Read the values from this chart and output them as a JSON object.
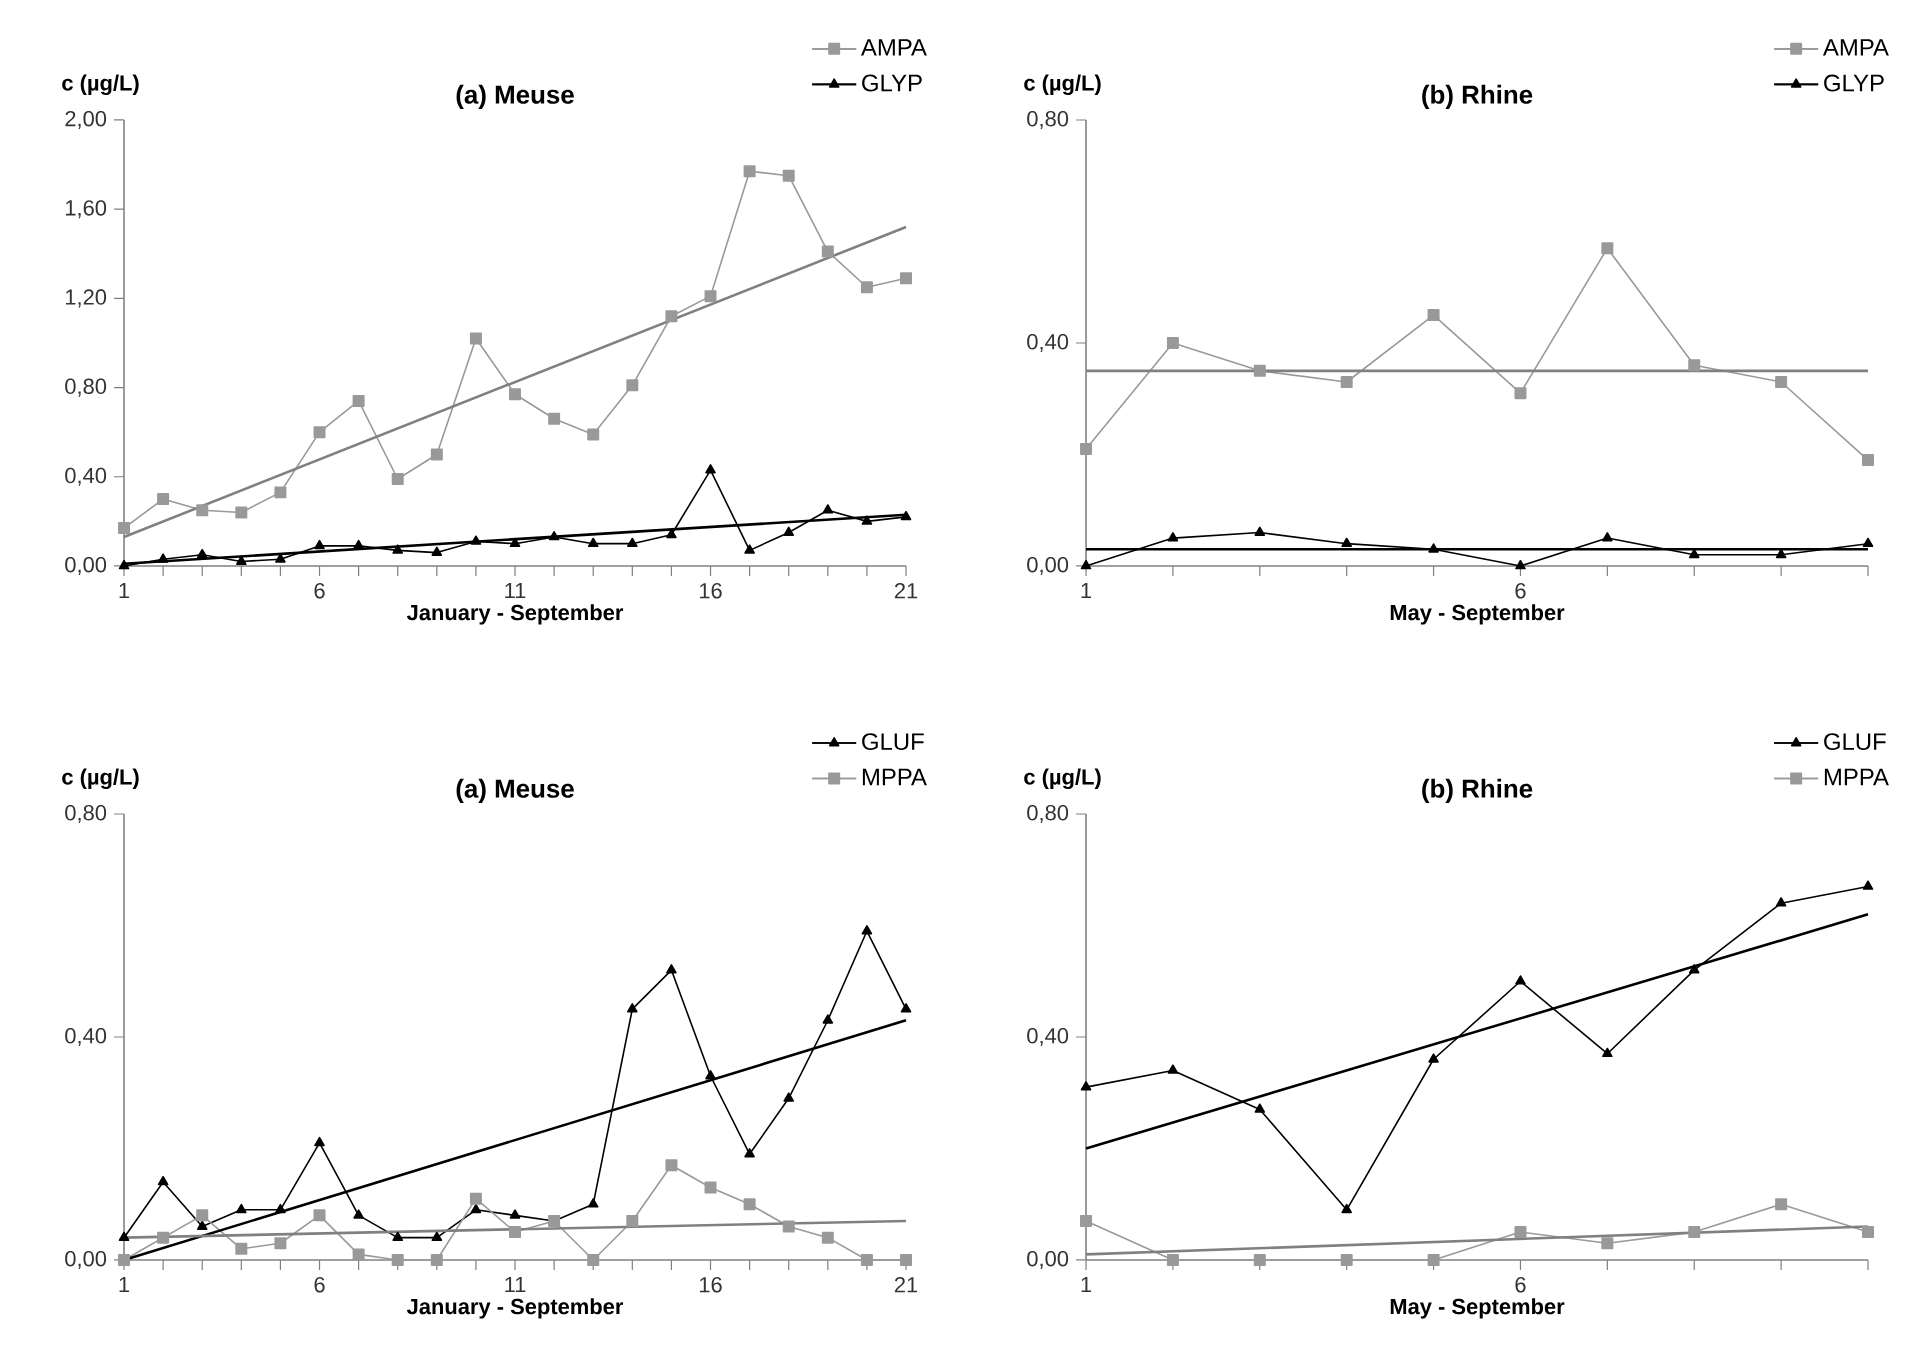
{
  "chart_data": [
    {
      "type": "line",
      "title": "(a) Meuse",
      "xlabel": "January - September",
      "ylabel": "c (µg/L)",
      "x": [
        1,
        2,
        3,
        4,
        5,
        6,
        7,
        8,
        9,
        10,
        11,
        12,
        13,
        14,
        15,
        16,
        17,
        18,
        19,
        20,
        21
      ],
      "xlim": [
        1,
        21
      ],
      "xticks": [
        1,
        {
          "value": 2,
          "label": null
        },
        {
          "value": 3,
          "label": null
        },
        {
          "value": 4,
          "label": null
        },
        {
          "value": 5,
          "label": null
        },
        6,
        {
          "value": 7,
          "label": null
        },
        {
          "value": 8,
          "label": null
        },
        {
          "value": 9,
          "label": null
        },
        {
          "value": 10,
          "label": null
        },
        11,
        {
          "value": 12,
          "label": null
        },
        {
          "value": 13,
          "label": null
        },
        {
          "value": 14,
          "label": null
        },
        {
          "value": 15,
          "label": null
        },
        16,
        {
          "value": 17,
          "label": null
        },
        {
          "value": 18,
          "label": null
        },
        {
          "value": 19,
          "label": null
        },
        {
          "value": 20,
          "label": null
        },
        21
      ],
      "ylim": [
        0,
        2
      ],
      "yticks": [
        {
          "value": 0,
          "label": "0,00"
        },
        {
          "value": 0.4,
          "label": "0,40"
        },
        {
          "value": 0.8,
          "label": "0,80"
        },
        {
          "value": 1.2,
          "label": "1,20"
        },
        {
          "value": 1.6,
          "label": "1,60"
        },
        {
          "value": 2,
          "label": "2,00"
        }
      ],
      "legend": "top right",
      "grid": false,
      "series": [
        {
          "name": "AMPA",
          "color": "#999999",
          "marker": "square",
          "values": [
            0.17,
            0.3,
            0.25,
            0.24,
            0.33,
            0.6,
            0.74,
            0.39,
            0.5,
            1.02,
            0.77,
            0.66,
            0.59,
            0.81,
            1.12,
            1.21,
            1.77,
            1.75,
            1.41,
            1.25,
            1.29
          ]
        },
        {
          "name": "GLYP",
          "color": "#000000",
          "marker": "triangle",
          "values": [
            0.0,
            0.03,
            0.05,
            0.02,
            0.03,
            0.09,
            0.09,
            0.07,
            0.06,
            0.11,
            0.1,
            0.13,
            0.1,
            0.1,
            0.14,
            0.43,
            0.07,
            0.15,
            0.25,
            0.2,
            0.22
          ]
        },
        {
          "color": "#808080",
          "marker": "none",
          "x": [
            1,
            21
          ],
          "values": [
            0.13,
            1.52
          ]
        },
        {
          "color": "#000000",
          "marker": "none",
          "x": [
            1,
            21
          ],
          "values": [
            0.01,
            0.23
          ]
        }
      ]
    },
    {
      "type": "line",
      "title": "(b) Rhine",
      "xlabel": "May - September",
      "ylabel": "c (µg/L)",
      "x": [
        1,
        2,
        3,
        4,
        5,
        6,
        7,
        8,
        9,
        10
      ],
      "xlim": [
        1,
        10
      ],
      "xticks": [
        1,
        {
          "value": 2,
          "label": null
        },
        {
          "value": 3,
          "label": null
        },
        {
          "value": 4,
          "label": null
        },
        {
          "value": 5,
          "label": null
        },
        6,
        {
          "value": 7,
          "label": null
        },
        {
          "value": 8,
          "label": null
        },
        {
          "value": 9,
          "label": null
        },
        {
          "value": 10,
          "label": null
        }
      ],
      "ylim": [
        0,
        0.8
      ],
      "yticks": [
        {
          "value": 0,
          "label": "0,00"
        },
        {
          "value": 0.4,
          "label": "0,40"
        },
        {
          "value": 0.8,
          "label": "0,80"
        }
      ],
      "legend": "top right",
      "grid": false,
      "series": [
        {
          "name": "AMPA",
          "color": "#999999",
          "marker": "square",
          "values": [
            0.21,
            0.4,
            0.35,
            0.33,
            0.45,
            0.31,
            0.57,
            0.36,
            0.33,
            0.19
          ]
        },
        {
          "name": "GLYP",
          "color": "#000000",
          "marker": "triangle",
          "values": [
            0.0,
            0.05,
            0.06,
            0.04,
            0.03,
            0.0,
            0.05,
            0.02,
            0.02,
            0.04
          ]
        },
        {
          "color": "#808080",
          "marker": "none",
          "x": [
            1,
            10
          ],
          "values": [
            0.35,
            0.35
          ]
        },
        {
          "color": "#000000",
          "marker": "none",
          "x": [
            1,
            10
          ],
          "values": [
            0.03,
            0.03
          ]
        }
      ]
    },
    {
      "type": "line",
      "title": "(a) Meuse",
      "xlabel": "January - September",
      "ylabel": "c (µg/L)",
      "x": [
        1,
        2,
        3,
        4,
        5,
        6,
        7,
        8,
        9,
        10,
        11,
        12,
        13,
        14,
        15,
        16,
        17,
        18,
        19,
        20,
        21
      ],
      "xlim": [
        1,
        21
      ],
      "xticks": [
        1,
        {
          "value": 2,
          "label": null
        },
        {
          "value": 3,
          "label": null
        },
        {
          "value": 4,
          "label": null
        },
        {
          "value": 5,
          "label": null
        },
        6,
        {
          "value": 7,
          "label": null
        },
        {
          "value": 8,
          "label": null
        },
        {
          "value": 9,
          "label": null
        },
        {
          "value": 10,
          "label": null
        },
        11,
        {
          "value": 12,
          "label": null
        },
        {
          "value": 13,
          "label": null
        },
        {
          "value": 14,
          "label": null
        },
        {
          "value": 15,
          "label": null
        },
        16,
        {
          "value": 17,
          "label": null
        },
        {
          "value": 18,
          "label": null
        },
        {
          "value": 19,
          "label": null
        },
        {
          "value": 20,
          "label": null
        },
        21
      ],
      "ylim": [
        0,
        0.8
      ],
      "yticks": [
        {
          "value": 0,
          "label": "0,00"
        },
        {
          "value": 0.4,
          "label": "0,40"
        },
        {
          "value": 0.8,
          "label": "0,80"
        }
      ],
      "legend": "top right",
      "grid": false,
      "series": [
        {
          "name": "GLUF",
          "color": "#000000",
          "marker": "triangle",
          "values": [
            0.04,
            0.14,
            0.06,
            0.09,
            0.09,
            0.21,
            0.08,
            0.04,
            0.04,
            0.09,
            0.08,
            0.07,
            0.1,
            0.45,
            0.52,
            0.33,
            0.19,
            0.29,
            0.43,
            0.59,
            0.45
          ]
        },
        {
          "name": "MPPA",
          "color": "#999999",
          "marker": "square",
          "values": [
            0.0,
            0.04,
            0.08,
            0.02,
            0.03,
            0.08,
            0.01,
            0.0,
            0.0,
            0.11,
            0.05,
            0.07,
            0.0,
            0.07,
            0.17,
            0.13,
            0.1,
            0.06,
            0.04,
            0.0,
            0.0
          ]
        },
        {
          "color": "#000000",
          "marker": "none",
          "x": [
            1,
            21
          ],
          "values": [
            0.0,
            0.43
          ]
        },
        {
          "color": "#808080",
          "marker": "none",
          "x": [
            1,
            21
          ],
          "values": [
            0.04,
            0.07
          ]
        }
      ]
    },
    {
      "type": "line",
      "title": "(b) Rhine",
      "xlabel": "May - September",
      "ylabel": "c (µg/L)",
      "x": [
        1,
        2,
        3,
        4,
        5,
        6,
        7,
        8,
        9,
        10
      ],
      "xlim": [
        1,
        10
      ],
      "xticks": [
        1,
        {
          "value": 2,
          "label": null
        },
        {
          "value": 3,
          "label": null
        },
        {
          "value": 4,
          "label": null
        },
        {
          "value": 5,
          "label": null
        },
        6,
        {
          "value": 7,
          "label": null
        },
        {
          "value": 8,
          "label": null
        },
        {
          "value": 9,
          "label": null
        },
        {
          "value": 10,
          "label": null
        }
      ],
      "ylim": [
        0,
        0.8
      ],
      "yticks": [
        {
          "value": 0,
          "label": "0,00"
        },
        {
          "value": 0.4,
          "label": "0,40"
        },
        {
          "value": 0.8,
          "label": "0,80"
        }
      ],
      "legend": "top right",
      "grid": false,
      "series": [
        {
          "name": "GLUF",
          "color": "#000000",
          "marker": "triangle",
          "values": [
            0.31,
            0.34,
            0.27,
            0.09,
            0.36,
            0.5,
            0.37,
            0.52,
            0.64,
            0.67
          ]
        },
        {
          "name": "MPPA",
          "color": "#999999",
          "marker": "square",
          "values": [
            0.07,
            0.0,
            0.0,
            0.0,
            0.0,
            0.05,
            0.03,
            0.05,
            0.1,
            0.05
          ]
        },
        {
          "color": "#000000",
          "marker": "none",
          "x": [
            1,
            10
          ],
          "values": [
            0.2,
            0.62
          ]
        },
        {
          "color": "#808080",
          "marker": "none",
          "x": [
            1,
            10
          ],
          "values": [
            0.01,
            0.06
          ]
        }
      ]
    }
  ]
}
